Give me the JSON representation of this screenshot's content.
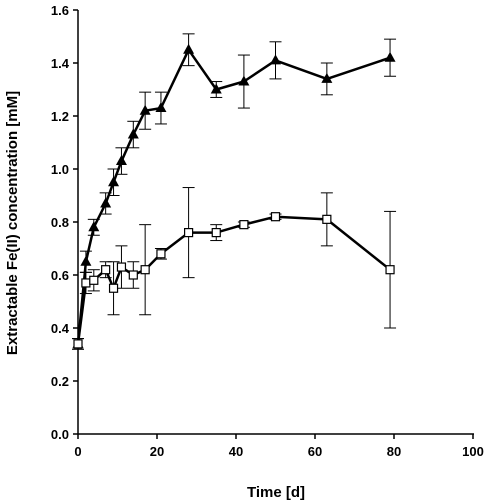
{
  "chart_data": {
    "type": "line",
    "title": "",
    "xlabel": "Time [d]",
    "ylabel": "Extractable Fe(II) concentration [mM]",
    "xlim": [
      0,
      100
    ],
    "ylim": [
      0,
      1.6
    ],
    "xticks": [
      "0",
      "20",
      "40",
      "60",
      "80",
      "100"
    ],
    "yticks": [
      "0.0",
      "0.2",
      "0.4",
      "0.6",
      "0.8",
      "1.0",
      "1.2",
      "1.4",
      "1.6"
    ],
    "grid": false,
    "legend": "none",
    "series": [
      {
        "marker": "filled-triangle",
        "color": "#000000",
        "points": [
          {
            "x": 0,
            "y": 0.34,
            "err": 0.02
          },
          {
            "x": 2,
            "y": 0.65,
            "err": 0.04
          },
          {
            "x": 4,
            "y": 0.78,
            "err": 0.03
          },
          {
            "x": 7,
            "y": 0.87,
            "err": 0.04
          },
          {
            "x": 9,
            "y": 0.95,
            "err": 0.05
          },
          {
            "x": 11,
            "y": 1.03,
            "err": 0.05
          },
          {
            "x": 14,
            "y": 1.13,
            "err": 0.05
          },
          {
            "x": 17,
            "y": 1.22,
            "err": 0.07
          },
          {
            "x": 21,
            "y": 1.23,
            "err": 0.06
          },
          {
            "x": 28,
            "y": 1.45,
            "err": 0.06
          },
          {
            "x": 35,
            "y": 1.3,
            "err": 0.03
          },
          {
            "x": 42,
            "y": 1.33,
            "err": 0.1
          },
          {
            "x": 50,
            "y": 1.41,
            "err": 0.07
          },
          {
            "x": 63,
            "y": 1.34,
            "err": 0.06
          },
          {
            "x": 79,
            "y": 1.42,
            "err": 0.07
          }
        ]
      },
      {
        "marker": "open-square",
        "color": "#000000",
        "points": [
          {
            "x": 0,
            "y": 0.34,
            "err": 0.02
          },
          {
            "x": 2,
            "y": 0.57,
            "err": 0.04
          },
          {
            "x": 4,
            "y": 0.58,
            "err": 0.04
          },
          {
            "x": 7,
            "y": 0.62,
            "err": 0.03
          },
          {
            "x": 9,
            "y": 0.55,
            "err": 0.1
          },
          {
            "x": 11,
            "y": 0.63,
            "err": 0.08
          },
          {
            "x": 14,
            "y": 0.6,
            "err": 0.05
          },
          {
            "x": 17,
            "y": 0.62,
            "err": 0.17
          },
          {
            "x": 21,
            "y": 0.68,
            "err": 0.02
          },
          {
            "x": 28,
            "y": 0.76,
            "err": 0.17
          },
          {
            "x": 35,
            "y": 0.76,
            "err": 0.03
          },
          {
            "x": 42,
            "y": 0.79,
            "err": 0.01
          },
          {
            "x": 50,
            "y": 0.82,
            "err": 0.01
          },
          {
            "x": 63,
            "y": 0.81,
            "err": 0.1
          },
          {
            "x": 79,
            "y": 0.62,
            "err": 0.22
          }
        ]
      }
    ]
  }
}
